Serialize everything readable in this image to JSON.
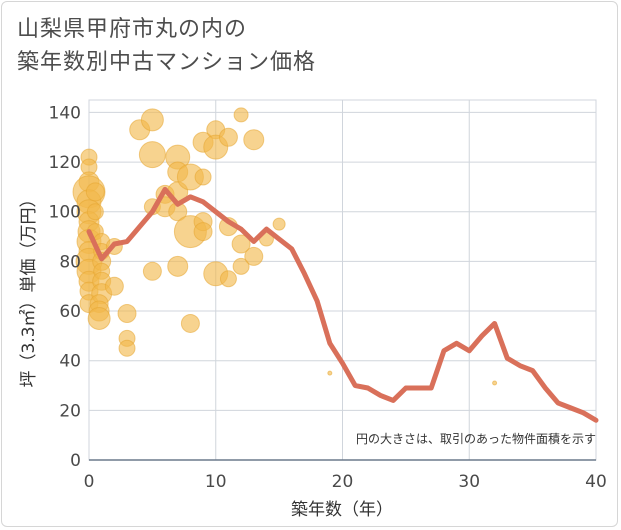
{
  "title_lines": [
    "山梨県甲府市丸の内の",
    "築年数別中古マンション価格"
  ],
  "chart_data": {
    "type": "scatter",
    "xlabel": "築年数（年）",
    "ylabel": "坪（3.3㎡）単価（万円）",
    "note": "円の大きさは、取引のあった物件面積を示す",
    "xlim": [
      0,
      40
    ],
    "ylim": [
      0,
      145
    ],
    "xticks": [
      0,
      10,
      20,
      30,
      40
    ],
    "yticks": [
      0,
      20,
      40,
      60,
      80,
      100,
      120,
      140
    ],
    "grid": true,
    "colors": {
      "bubble": "#f2b84b",
      "line": "#d9705a"
    },
    "line_series": {
      "x": [
        0,
        1,
        2,
        3,
        4,
        5,
        6,
        7,
        8,
        9,
        10,
        11,
        12,
        13,
        14,
        15,
        16,
        17,
        18,
        19,
        20,
        21,
        22,
        23,
        24,
        25,
        26,
        27,
        28,
        29,
        30,
        31,
        32,
        33,
        34,
        35,
        36,
        37,
        38,
        39,
        40
      ],
      "y": [
        92,
        81,
        87,
        88,
        94,
        100,
        109,
        103,
        106,
        104,
        100,
        96,
        93,
        88,
        93,
        89,
        85,
        75,
        64,
        47,
        39,
        30,
        29,
        26,
        24,
        29,
        29,
        29,
        44,
        47,
        44,
        50,
        55,
        41,
        38,
        36,
        29,
        23,
        21,
        19,
        16
      ]
    },
    "bubbles": [
      {
        "x": 0,
        "y": 122,
        "s": 8
      },
      {
        "x": 0,
        "y": 118,
        "s": 8
      },
      {
        "x": 0,
        "y": 112,
        "s": 10
      },
      {
        "x": 0,
        "y": 108,
        "s": 16
      },
      {
        "x": 0,
        "y": 104,
        "s": 12
      },
      {
        "x": 0,
        "y": 100,
        "s": 12
      },
      {
        "x": 0,
        "y": 96,
        "s": 10
      },
      {
        "x": 0,
        "y": 92,
        "s": 11
      },
      {
        "x": 0,
        "y": 88,
        "s": 12
      },
      {
        "x": 0,
        "y": 84,
        "s": 10
      },
      {
        "x": 0,
        "y": 80,
        "s": 13
      },
      {
        "x": 0,
        "y": 76,
        "s": 12
      },
      {
        "x": 0,
        "y": 72,
        "s": 10
      },
      {
        "x": 0,
        "y": 68,
        "s": 9
      },
      {
        "x": 0,
        "y": 63,
        "s": 9
      },
      {
        "x": 0.5,
        "y": 108,
        "s": 9
      },
      {
        "x": 0.5,
        "y": 100,
        "s": 8
      },
      {
        "x": 0.5,
        "y": 92,
        "s": 8
      },
      {
        "x": 1,
        "y": 88,
        "s": 8
      },
      {
        "x": 1,
        "y": 84,
        "s": 8
      },
      {
        "x": 1,
        "y": 80,
        "s": 9
      },
      {
        "x": 1,
        "y": 76,
        "s": 8
      },
      {
        "x": 1,
        "y": 72,
        "s": 9
      },
      {
        "x": 1,
        "y": 67,
        "s": 10
      },
      {
        "x": 0.8,
        "y": 63,
        "s": 9
      },
      {
        "x": 0.8,
        "y": 60,
        "s": 10
      },
      {
        "x": 0.8,
        "y": 57,
        "s": 11
      },
      {
        "x": 2,
        "y": 86,
        "s": 8
      },
      {
        "x": 2,
        "y": 70,
        "s": 9
      },
      {
        "x": 3,
        "y": 59,
        "s": 9
      },
      {
        "x": 3,
        "y": 49,
        "s": 8
      },
      {
        "x": 3,
        "y": 45,
        "s": 8
      },
      {
        "x": 4,
        "y": 133,
        "s": 10
      },
      {
        "x": 5,
        "y": 137,
        "s": 11
      },
      {
        "x": 5,
        "y": 123,
        "s": 13
      },
      {
        "x": 5,
        "y": 102,
        "s": 8
      },
      {
        "x": 5,
        "y": 76,
        "s": 9
      },
      {
        "x": 6,
        "y": 107,
        "s": 9
      },
      {
        "x": 6,
        "y": 102,
        "s": 10
      },
      {
        "x": 7,
        "y": 122,
        "s": 12
      },
      {
        "x": 7,
        "y": 116,
        "s": 10
      },
      {
        "x": 7,
        "y": 108,
        "s": 10
      },
      {
        "x": 7,
        "y": 100,
        "s": 9
      },
      {
        "x": 7,
        "y": 78,
        "s": 10
      },
      {
        "x": 8,
        "y": 114,
        "s": 13
      },
      {
        "x": 8,
        "y": 92,
        "s": 16
      },
      {
        "x": 8,
        "y": 55,
        "s": 9
      },
      {
        "x": 9,
        "y": 128,
        "s": 10
      },
      {
        "x": 9,
        "y": 114,
        "s": 8
      },
      {
        "x": 9,
        "y": 96,
        "s": 9
      },
      {
        "x": 9,
        "y": 92,
        "s": 9
      },
      {
        "x": 10,
        "y": 133,
        "s": 9
      },
      {
        "x": 10,
        "y": 126,
        "s": 12
      },
      {
        "x": 10,
        "y": 75,
        "s": 12
      },
      {
        "x": 11,
        "y": 130,
        "s": 9
      },
      {
        "x": 11,
        "y": 94,
        "s": 9
      },
      {
        "x": 11,
        "y": 73,
        "s": 8
      },
      {
        "x": 12,
        "y": 139,
        "s": 7
      },
      {
        "x": 12,
        "y": 87,
        "s": 9
      },
      {
        "x": 12,
        "y": 78,
        "s": 8
      },
      {
        "x": 13,
        "y": 129,
        "s": 10
      },
      {
        "x": 13,
        "y": 82,
        "s": 9
      },
      {
        "x": 14,
        "y": 89,
        "s": 7
      },
      {
        "x": 15,
        "y": 95,
        "s": 6
      },
      {
        "x": 19,
        "y": 35,
        "s": 2
      },
      {
        "x": 32,
        "y": 31,
        "s": 2
      }
    ]
  }
}
